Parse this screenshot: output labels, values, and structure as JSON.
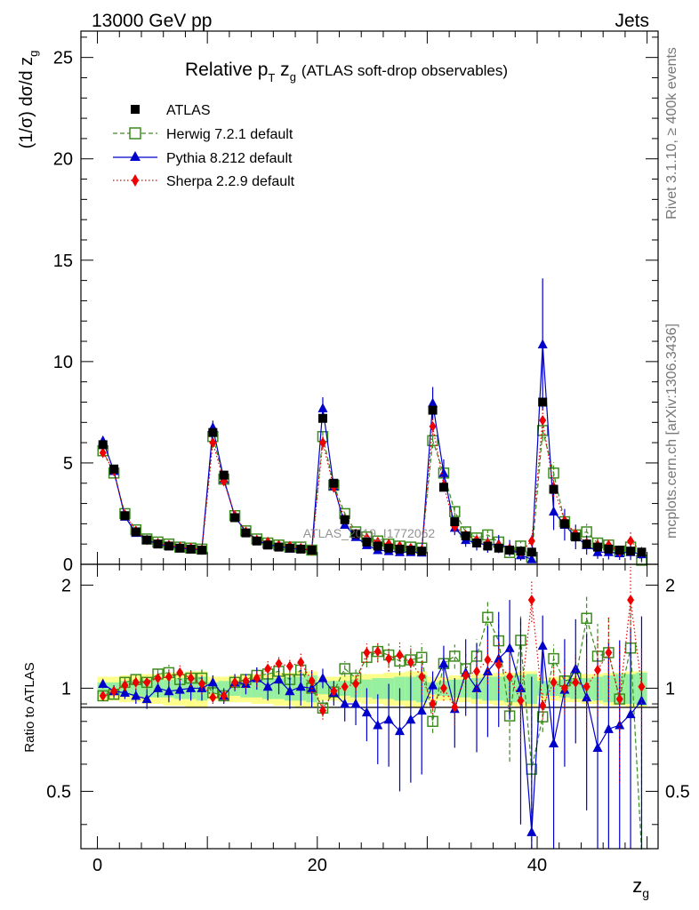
{
  "header": {
    "left": "13000 GeV pp",
    "right": "Jets"
  },
  "side_labels": {
    "rivet": "Rivet 3.1.10, ≥ 400k events",
    "mcplots": "mcplots.cern.ch [arXiv:1306.3436]"
  },
  "watermark": "ATLAS_2019_I1772062",
  "chart_data": {
    "type": "line",
    "title_main": "Relative p",
    "title_sub_t": "T",
    "title_mid": " z",
    "title_sub_g": "g",
    "title_paren": "(ATLAS soft-drop observables)",
    "ylabel_prefix": "(1/σ) dσ/d z",
    "ylabel_sub": "g",
    "xlabel": "z",
    "xlabel_sub": "g",
    "ratio_ylabel": "Ratio to ATLAS",
    "xlim": [
      -1.5,
      51
    ],
    "ylim": [
      0,
      26.3
    ],
    "ratio_ylim": [
      0.34,
      2.3
    ],
    "x_ticks": [
      0,
      20,
      40
    ],
    "y_ticks": [
      0,
      5,
      10,
      15,
      20,
      25
    ],
    "ratio_ticks": [
      0.5,
      1,
      2
    ],
    "legend": [
      {
        "name": "ATLAS",
        "color": "#000000",
        "marker": "square"
      },
      {
        "name": "Herwig 7.2.1 default",
        "color": "#3c8c1e",
        "marker": "open-square",
        "dash": "dashed"
      },
      {
        "name": "Pythia 8.212 default",
        "color": "#0000cc",
        "marker": "triangle",
        "dash": "solid"
      },
      {
        "name": "Sherpa 2.2.9 default",
        "color": "#ee0000",
        "marker": "diamond",
        "dash": "dotted"
      }
    ],
    "x": [
      0.5,
      1.5,
      2.5,
      3.5,
      4.5,
      5.5,
      6.5,
      7.5,
      8.5,
      9.5,
      10.5,
      11.5,
      12.5,
      13.5,
      14.5,
      15.5,
      16.5,
      17.5,
      18.5,
      19.5,
      20.5,
      21.5,
      22.5,
      23.5,
      24.5,
      25.5,
      26.5,
      27.5,
      28.5,
      29.5,
      30.5,
      31.5,
      32.5,
      33.5,
      34.5,
      35.5,
      36.5,
      37.5,
      38.5,
      39.5,
      40.5,
      41.5,
      42.5,
      43.5,
      44.5,
      45.5,
      46.5,
      47.5,
      48.5,
      49.5
    ],
    "data": {
      "name": "ATLAS",
      "values": [
        5.9,
        4.7,
        2.4,
        1.6,
        1.2,
        1.0,
        0.9,
        0.8,
        0.75,
        0.7,
        6.5,
        4.4,
        2.3,
        1.55,
        1.15,
        0.95,
        0.85,
        0.8,
        0.75,
        0.7,
        7.2,
        4.0,
        2.2,
        1.5,
        1.1,
        0.9,
        0.8,
        0.75,
        0.7,
        0.65,
        7.6,
        3.8,
        2.1,
        1.4,
        1.05,
        0.9,
        0.8,
        0.7,
        0.65,
        0.6,
        8.0,
        3.7,
        2.0,
        1.35,
        1.0,
        0.85,
        0.75,
        0.7,
        0.65,
        0.6
      ]
    },
    "series": [
      {
        "name": "Herwig 7.2.1 default",
        "values": [
          5.6,
          4.5,
          2.5,
          1.7,
          1.25,
          1.1,
          1.0,
          0.85,
          0.8,
          0.75,
          6.3,
          4.2,
          2.4,
          1.65,
          1.25,
          1.05,
          0.95,
          0.85,
          0.85,
          0.7,
          6.3,
          3.9,
          2.5,
          1.6,
          1.35,
          1.15,
          1.0,
          0.9,
          0.85,
          0.8,
          6.1,
          4.5,
          2.6,
          1.6,
          1.3,
          1.45,
          1.1,
          0.58,
          0.9,
          0.35,
          6.6,
          4.5,
          2.1,
          1.45,
          1.6,
          1.05,
          0.95,
          0.65,
          0.85,
          0.2
        ],
        "ratio": [
          0.95,
          0.96,
          1.04,
          1.06,
          1.04,
          1.1,
          1.11,
          1.06,
          1.07,
          1.07,
          0.97,
          0.95,
          1.04,
          1.06,
          1.09,
          1.1,
          1.12,
          1.06,
          1.13,
          1.0,
          0.875,
          0.975,
          1.14,
          1.07,
          1.23,
          1.28,
          1.25,
          1.2,
          1.21,
          1.23,
          0.8,
          1.18,
          1.24,
          1.14,
          1.24,
          1.61,
          1.375,
          0.83,
          1.38,
          0.58,
          0.825,
          1.22,
          1.05,
          1.07,
          1.6,
          1.24,
          1.27,
          0.93,
          1.31,
          0.33
        ],
        "ratio_err": [
          0.03,
          0.03,
          0.04,
          0.05,
          0.05,
          0.05,
          0.06,
          0.06,
          0.06,
          0.07,
          0.04,
          0.04,
          0.05,
          0.05,
          0.06,
          0.06,
          0.07,
          0.07,
          0.08,
          0.08,
          0.05,
          0.05,
          0.06,
          0.07,
          0.08,
          0.09,
          0.1,
          0.11,
          0.12,
          0.12,
          0.06,
          0.08,
          0.1,
          0.12,
          0.15,
          0.18,
          0.2,
          0.22,
          0.24,
          0.3,
          0.08,
          0.12,
          0.16,
          0.2,
          0.25,
          0.3,
          0.35,
          0.4,
          0.45,
          0.6
        ]
      },
      {
        "name": "Pythia 8.212 default",
        "values": [
          6.1,
          4.6,
          2.35,
          1.55,
          1.2,
          1.0,
          0.9,
          0.8,
          0.75,
          0.72,
          6.75,
          4.2,
          2.35,
          1.6,
          1.2,
          0.95,
          0.9,
          0.78,
          0.75,
          0.7,
          7.7,
          3.85,
          1.95,
          1.35,
          0.95,
          0.7,
          0.65,
          0.6,
          0.6,
          0.58,
          7.95,
          4.5,
          1.8,
          1.2,
          1.05,
          0.95,
          1.0,
          0.8,
          0.45,
          0.25,
          10.85,
          2.6,
          1.95,
          1.35,
          0.95,
          0.6,
          0.6,
          0.55,
          0.6,
          0.5
        ],
        "ratio": [
          1.03,
          0.98,
          0.97,
          0.95,
          0.93,
          1.0,
          0.98,
          0.99,
          1.0,
          1.0,
          1.04,
          0.95,
          1.04,
          1.03,
          1.07,
          1.01,
          1.06,
          0.98,
          1.01,
          1.0,
          1.07,
          0.97,
          0.9,
          0.9,
          0.85,
          0.78,
          0.81,
          0.75,
          0.81,
          0.86,
          1.02,
          1.18,
          0.87,
          1.11,
          1.0,
          1.12,
          1.22,
          1.31,
          1.0,
          0.38,
          1.33,
          0.69,
          0.99,
          1.14,
          0.94,
          0.67,
          0.76,
          0.78,
          0.84,
          0.92
        ],
        "ratio_err": [
          0.03,
          0.04,
          0.04,
          0.05,
          0.06,
          0.06,
          0.07,
          0.07,
          0.08,
          0.08,
          0.05,
          0.05,
          0.06,
          0.07,
          0.08,
          0.09,
          0.1,
          0.11,
          0.12,
          0.12,
          0.07,
          0.08,
          0.1,
          0.12,
          0.15,
          0.18,
          0.22,
          0.25,
          0.28,
          0.3,
          0.1,
          0.15,
          0.2,
          0.28,
          0.35,
          0.4,
          0.45,
          0.5,
          0.6,
          0.7,
          0.3,
          0.35,
          0.4,
          0.45,
          0.5,
          0.55,
          0.6,
          0.6,
          0.65,
          0.7
        ]
      },
      {
        "name": "Sherpa 2.2.9 default",
        "values": [
          5.5,
          4.6,
          2.45,
          1.65,
          1.2,
          1.05,
          0.95,
          0.85,
          0.8,
          0.72,
          6.0,
          4.1,
          2.4,
          1.6,
          1.2,
          1.1,
          0.95,
          0.9,
          0.8,
          0.7,
          6.0,
          3.8,
          2.2,
          1.5,
          1.3,
          1.1,
          1.0,
          0.9,
          0.8,
          0.7,
          6.8,
          3.9,
          1.85,
          1.45,
          1.2,
          1.05,
          0.95,
          0.75,
          0.6,
          1.15,
          7.1,
          3.8,
          2.15,
          1.5,
          1.05,
          0.95,
          0.95,
          0.65,
          1.15,
          0.6
        ],
        "ratio": [
          0.95,
          0.98,
          1.02,
          1.04,
          1.04,
          1.07,
          1.08,
          1.11,
          1.07,
          1.03,
          0.94,
          0.95,
          1.04,
          1.05,
          1.07,
          1.14,
          1.18,
          1.16,
          1.19,
          1.05,
          0.86,
          0.98,
          1.01,
          1.03,
          1.27,
          1.28,
          1.22,
          1.25,
          1.19,
          1.08,
          0.9,
          1.0,
          0.88,
          1.09,
          1.12,
          1.21,
          1.17,
          1.08,
          0.92,
          1.81,
          0.89,
          1.04,
          1.0,
          1.04,
          1.01,
          1.13,
          1.27,
          0.93,
          1.81,
          1.01
        ],
        "ratio_err": [
          0.03,
          0.03,
          0.04,
          0.05,
          0.05,
          0.05,
          0.06,
          0.06,
          0.06,
          0.07,
          0.04,
          0.04,
          0.05,
          0.05,
          0.06,
          0.06,
          0.07,
          0.07,
          0.08,
          0.08,
          0.05,
          0.05,
          0.06,
          0.07,
          0.08,
          0.09,
          0.1,
          0.11,
          0.12,
          0.12,
          0.06,
          0.08,
          0.1,
          0.12,
          0.15,
          0.18,
          0.2,
          0.22,
          0.24,
          0.25,
          0.08,
          0.12,
          0.16,
          0.2,
          0.25,
          0.3,
          0.35,
          0.4,
          0.45,
          0.3
        ]
      }
    ],
    "data_error_band": [
      0.04,
      0.04,
      0.05,
      0.05,
      0.06,
      0.06,
      0.06,
      0.07,
      0.07,
      0.08,
      0.04,
      0.05,
      0.05,
      0.06,
      0.06,
      0.07,
      0.07,
      0.08,
      0.08,
      0.09,
      0.04,
      0.05,
      0.05,
      0.06,
      0.06,
      0.07,
      0.07,
      0.08,
      0.08,
      0.09,
      0.04,
      0.05,
      0.06,
      0.06,
      0.07,
      0.08,
      0.08,
      0.09,
      0.09,
      0.1,
      0.05,
      0.05,
      0.06,
      0.07,
      0.07,
      0.08,
      0.09,
      0.1,
      0.1,
      0.11
    ],
    "data_error_band_outer": [
      0.08,
      0.08,
      0.09,
      0.09,
      0.1,
      0.1,
      0.11,
      0.11,
      0.12,
      0.12,
      0.08,
      0.08,
      0.09,
      0.09,
      0.1,
      0.1,
      0.11,
      0.11,
      0.12,
      0.12,
      0.08,
      0.08,
      0.09,
      0.09,
      0.1,
      0.1,
      0.11,
      0.11,
      0.12,
      0.12,
      0.08,
      0.08,
      0.09,
      0.09,
      0.1,
      0.1,
      0.11,
      0.11,
      0.12,
      0.12,
      0.08,
      0.08,
      0.09,
      0.09,
      0.1,
      0.1,
      0.11,
      0.11,
      0.12,
      0.12
    ]
  }
}
